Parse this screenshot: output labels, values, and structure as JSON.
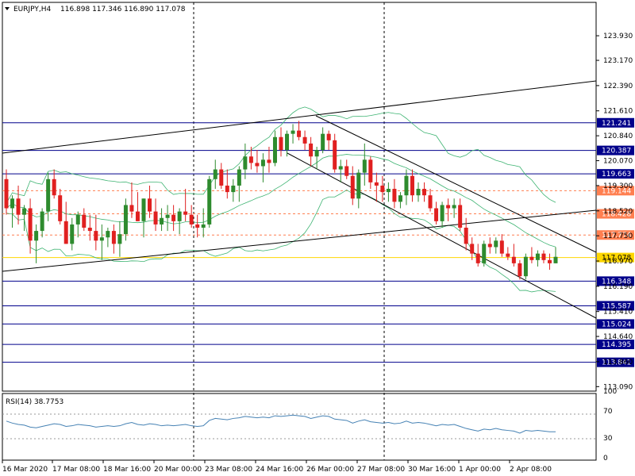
{
  "header": {
    "symbol": "EURJPY,H4",
    "ohlc": "116.898 117.346 116.890 117.078"
  },
  "rsi_panel": {
    "label": "RSI(14) 38.7753",
    "levels": [
      {
        "value": 100,
        "label": "100"
      },
      {
        "value": 70,
        "label": "70"
      },
      {
        "value": 30,
        "label": "30"
      },
      {
        "value": 0,
        "label": "0"
      }
    ]
  },
  "colors": {
    "bull": "#2e8b2e",
    "bear": "#e02020",
    "bands": "#3cb371",
    "hline": "#00008b",
    "dashed": "#ff7f50",
    "price_line": "#ffd700",
    "rsi": "#4682b4",
    "grid": "#000000"
  },
  "chart_data": {
    "type": "candlestick",
    "title": "EURJPY,H4",
    "ylim": [
      113.0,
      124.5
    ],
    "y_ticks": [
      "123.930",
      "123.170",
      "122.390",
      "121.610",
      "120.840",
      "120.070",
      "119.300",
      "118.520",
      "117.750",
      "116.970",
      "116.190",
      "115.410",
      "114.640",
      "113.860",
      "113.090"
    ],
    "x_ticks": [
      "16 Mar 2020",
      "17 Mar 08:00",
      "18 Mar 16:00",
      "20 Mar 00:00",
      "23 Mar 08:00",
      "24 Mar 16:00",
      "26 Mar 00:00",
      "27 Mar 08:00",
      "30 Mar 16:00",
      "1 Apr 00:00",
      "2 Apr 08:00"
    ],
    "horizontal_lines": [
      {
        "price": 121.241,
        "label": "121.241",
        "style": "solid"
      },
      {
        "price": 120.387,
        "label": "120.387",
        "style": "solid"
      },
      {
        "price": 119.663,
        "label": "119.663",
        "style": "solid"
      },
      {
        "price": 119.144,
        "label": "119.144",
        "style": "dashed"
      },
      {
        "price": 118.428,
        "label": "118.428",
        "style": "dashed"
      },
      {
        "price": 117.774,
        "label": "117.774",
        "style": "dashed"
      },
      {
        "price": 117.078,
        "label": "117.078",
        "style": "current"
      },
      {
        "price": 116.348,
        "label": "116.348",
        "style": "solid"
      },
      {
        "price": 115.587,
        "label": "115.587",
        "style": "solid"
      },
      {
        "price": 115.024,
        "label": "115.024",
        "style": "solid"
      },
      {
        "price": 114.395,
        "label": "114.395",
        "style": "solid"
      },
      {
        "price": 113.841,
        "label": "113.841",
        "style": "solid"
      }
    ],
    "candles": [
      {
        "o": 119.5,
        "h": 119.8,
        "l": 118.4,
        "c": 118.6
      },
      {
        "o": 118.6,
        "h": 119.0,
        "l": 118.0,
        "c": 118.9
      },
      {
        "o": 118.9,
        "h": 119.3,
        "l": 118.1,
        "c": 118.4
      },
      {
        "o": 118.4,
        "h": 118.7,
        "l": 117.9,
        "c": 118.6
      },
      {
        "o": 118.6,
        "h": 118.9,
        "l": 117.2,
        "c": 117.6
      },
      {
        "o": 117.6,
        "h": 118.1,
        "l": 116.9,
        "c": 117.9
      },
      {
        "o": 117.9,
        "h": 118.6,
        "l": 117.7,
        "c": 118.5
      },
      {
        "o": 118.5,
        "h": 119.7,
        "l": 118.2,
        "c": 119.5
      },
      {
        "o": 119.5,
        "h": 119.8,
        "l": 118.9,
        "c": 119.0
      },
      {
        "o": 119.0,
        "h": 119.2,
        "l": 118.1,
        "c": 118.2
      },
      {
        "o": 118.2,
        "h": 118.8,
        "l": 117.5,
        "c": 117.5
      },
      {
        "o": 117.5,
        "h": 118.3,
        "l": 117.3,
        "c": 118.1
      },
      {
        "o": 118.1,
        "h": 118.5,
        "l": 117.7,
        "c": 118.4
      },
      {
        "o": 118.4,
        "h": 118.6,
        "l": 117.9,
        "c": 118.0
      },
      {
        "o": 118.0,
        "h": 118.4,
        "l": 117.6,
        "c": 117.9
      },
      {
        "o": 117.9,
        "h": 118.4,
        "l": 117.3,
        "c": 117.6
      },
      {
        "o": 117.6,
        "h": 118.1,
        "l": 117.0,
        "c": 117.7
      },
      {
        "o": 117.7,
        "h": 118.0,
        "l": 117.4,
        "c": 117.9
      },
      {
        "o": 117.9,
        "h": 118.1,
        "l": 117.2,
        "c": 117.5
      },
      {
        "o": 117.5,
        "h": 118.2,
        "l": 117.1,
        "c": 117.8
      },
      {
        "o": 117.8,
        "h": 118.9,
        "l": 117.6,
        "c": 118.7
      },
      {
        "o": 118.7,
        "h": 119.4,
        "l": 118.3,
        "c": 118.5
      },
      {
        "o": 118.5,
        "h": 119.1,
        "l": 118.2,
        "c": 118.2
      },
      {
        "o": 118.2,
        "h": 118.9,
        "l": 117.7,
        "c": 118.9
      },
      {
        "o": 118.9,
        "h": 119.3,
        "l": 118.3,
        "c": 118.5
      },
      {
        "o": 118.5,
        "h": 118.9,
        "l": 117.9,
        "c": 118.1
      },
      {
        "o": 118.1,
        "h": 118.6,
        "l": 117.9,
        "c": 118.3
      },
      {
        "o": 118.3,
        "h": 118.7,
        "l": 117.9,
        "c": 118.4
      },
      {
        "o": 118.4,
        "h": 118.7,
        "l": 117.9,
        "c": 118.2
      },
      {
        "o": 118.2,
        "h": 118.6,
        "l": 117.8,
        "c": 118.5
      },
      {
        "o": 118.5,
        "h": 119.2,
        "l": 118.2,
        "c": 118.4
      },
      {
        "o": 118.4,
        "h": 118.7,
        "l": 118.0,
        "c": 118.1
      },
      {
        "o": 118.1,
        "h": 118.4,
        "l": 117.7,
        "c": 118.0
      },
      {
        "o": 118.0,
        "h": 118.6,
        "l": 117.7,
        "c": 118.1
      },
      {
        "o": 118.1,
        "h": 119.6,
        "l": 118.0,
        "c": 119.5
      },
      {
        "o": 119.5,
        "h": 120.1,
        "l": 119.2,
        "c": 119.8
      },
      {
        "o": 119.8,
        "h": 120.0,
        "l": 119.2,
        "c": 119.3
      },
      {
        "o": 119.3,
        "h": 119.8,
        "l": 118.9,
        "c": 119.1
      },
      {
        "o": 119.1,
        "h": 119.5,
        "l": 118.8,
        "c": 119.3
      },
      {
        "o": 119.3,
        "h": 119.9,
        "l": 118.8,
        "c": 119.8
      },
      {
        "o": 119.8,
        "h": 120.6,
        "l": 119.5,
        "c": 120.2
      },
      {
        "o": 120.2,
        "h": 120.5,
        "l": 119.8,
        "c": 120.0
      },
      {
        "o": 120.0,
        "h": 120.4,
        "l": 119.7,
        "c": 119.9
      },
      {
        "o": 119.9,
        "h": 120.3,
        "l": 119.4,
        "c": 120.1
      },
      {
        "o": 120.1,
        "h": 120.5,
        "l": 119.7,
        "c": 120.0
      },
      {
        "o": 120.0,
        "h": 121.0,
        "l": 119.9,
        "c": 120.8
      },
      {
        "o": 120.8,
        "h": 121.1,
        "l": 120.2,
        "c": 120.4
      },
      {
        "o": 120.4,
        "h": 121.0,
        "l": 120.2,
        "c": 120.9
      },
      {
        "o": 120.9,
        "h": 121.2,
        "l": 120.6,
        "c": 121.0
      },
      {
        "o": 121.0,
        "h": 121.3,
        "l": 120.7,
        "c": 120.8
      },
      {
        "o": 120.8,
        "h": 121.0,
        "l": 120.4,
        "c": 120.6
      },
      {
        "o": 120.6,
        "h": 120.8,
        "l": 119.9,
        "c": 120.2
      },
      {
        "o": 120.2,
        "h": 120.5,
        "l": 119.8,
        "c": 120.4
      },
      {
        "o": 120.4,
        "h": 121.1,
        "l": 120.3,
        "c": 120.9
      },
      {
        "o": 120.9,
        "h": 121.0,
        "l": 120.4,
        "c": 120.7
      },
      {
        "o": 120.7,
        "h": 120.9,
        "l": 119.7,
        "c": 119.8
      },
      {
        "o": 119.8,
        "h": 120.1,
        "l": 119.4,
        "c": 119.9
      },
      {
        "o": 119.9,
        "h": 120.1,
        "l": 119.5,
        "c": 119.6
      },
      {
        "o": 119.6,
        "h": 119.9,
        "l": 118.7,
        "c": 118.9
      },
      {
        "o": 118.9,
        "h": 119.8,
        "l": 118.6,
        "c": 119.7
      },
      {
        "o": 119.7,
        "h": 120.6,
        "l": 119.3,
        "c": 120.1
      },
      {
        "o": 120.1,
        "h": 120.2,
        "l": 119.2,
        "c": 119.4
      },
      {
        "o": 119.4,
        "h": 119.7,
        "l": 118.8,
        "c": 119.3
      },
      {
        "o": 119.3,
        "h": 119.6,
        "l": 118.8,
        "c": 119.1
      },
      {
        "o": 119.1,
        "h": 119.4,
        "l": 118.8,
        "c": 119.2
      },
      {
        "o": 119.2,
        "h": 119.5,
        "l": 118.6,
        "c": 118.8
      },
      {
        "o": 118.8,
        "h": 119.1,
        "l": 118.6,
        "c": 119.0
      },
      {
        "o": 119.0,
        "h": 119.8,
        "l": 118.7,
        "c": 119.6
      },
      {
        "o": 119.6,
        "h": 119.8,
        "l": 118.8,
        "c": 119.0
      },
      {
        "o": 119.0,
        "h": 119.4,
        "l": 118.8,
        "c": 119.2
      },
      {
        "o": 119.2,
        "h": 119.4,
        "l": 118.8,
        "c": 119.0
      },
      {
        "o": 119.0,
        "h": 119.2,
        "l": 118.5,
        "c": 118.6
      },
      {
        "o": 118.6,
        "h": 118.8,
        "l": 118.1,
        "c": 118.2
      },
      {
        "o": 118.2,
        "h": 118.8,
        "l": 118.0,
        "c": 118.7
      },
      {
        "o": 118.7,
        "h": 118.9,
        "l": 118.2,
        "c": 118.6
      },
      {
        "o": 118.6,
        "h": 118.9,
        "l": 118.3,
        "c": 118.7
      },
      {
        "o": 118.7,
        "h": 118.9,
        "l": 117.9,
        "c": 118.0
      },
      {
        "o": 118.0,
        "h": 118.3,
        "l": 117.3,
        "c": 117.5
      },
      {
        "o": 117.5,
        "h": 117.7,
        "l": 117.0,
        "c": 117.2
      },
      {
        "o": 117.2,
        "h": 117.5,
        "l": 116.8,
        "c": 116.9
      },
      {
        "o": 116.9,
        "h": 117.6,
        "l": 116.8,
        "c": 117.5
      },
      {
        "o": 117.5,
        "h": 117.7,
        "l": 117.2,
        "c": 117.4
      },
      {
        "o": 117.4,
        "h": 117.7,
        "l": 117.2,
        "c": 117.6
      },
      {
        "o": 117.6,
        "h": 117.8,
        "l": 117.1,
        "c": 117.2
      },
      {
        "o": 117.2,
        "h": 117.4,
        "l": 117.0,
        "c": 117.1
      },
      {
        "o": 117.1,
        "h": 117.5,
        "l": 116.8,
        "c": 116.9
      },
      {
        "o": 116.9,
        "h": 117.0,
        "l": 116.4,
        "c": 116.5
      },
      {
        "o": 116.5,
        "h": 117.2,
        "l": 116.4,
        "c": 117.1
      },
      {
        "o": 117.1,
        "h": 117.4,
        "l": 116.9,
        "c": 117.0
      },
      {
        "o": 117.0,
        "h": 117.3,
        "l": 116.8,
        "c": 117.2
      },
      {
        "o": 117.2,
        "h": 117.3,
        "l": 116.9,
        "c": 117.0
      },
      {
        "o": 117.0,
        "h": 117.2,
        "l": 116.7,
        "c": 116.9
      },
      {
        "o": 116.9,
        "h": 117.4,
        "l": 116.9,
        "c": 117.1
      }
    ],
    "rsi_values": [
      55,
      52,
      50,
      49,
      46,
      45,
      47,
      49,
      51,
      50,
      47,
      48,
      50,
      49,
      48,
      46,
      47,
      48,
      47,
      48,
      51,
      53,
      50,
      49,
      51,
      50,
      48,
      49,
      48,
      49,
      50,
      48,
      47,
      48,
      56,
      59,
      58,
      57,
      59,
      60,
      62,
      61,
      60,
      61,
      60,
      63,
      62,
      63,
      64,
      63,
      62,
      59,
      61,
      63,
      62,
      58,
      57,
      56,
      52,
      55,
      57,
      54,
      53,
      52,
      53,
      51,
      52,
      55,
      52,
      53,
      52,
      50,
      48,
      50,
      49,
      50,
      47,
      44,
      42,
      40,
      43,
      42,
      44,
      42,
      41,
      40,
      37,
      41,
      40,
      41,
      40,
      39,
      39
    ]
  }
}
